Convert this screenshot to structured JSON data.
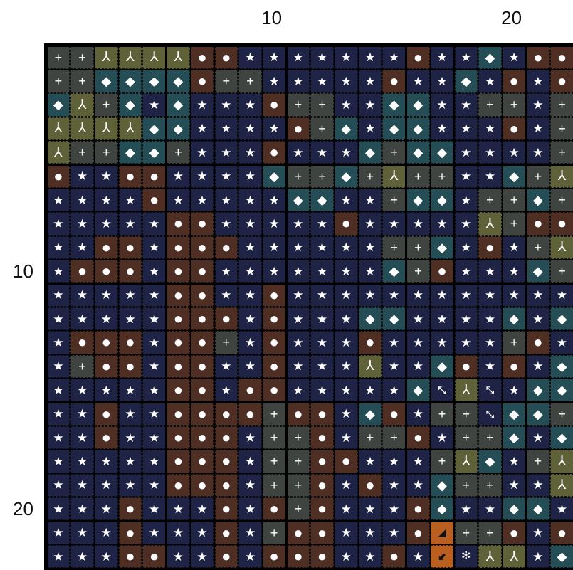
{
  "axes": {
    "top_labels": [
      {
        "text": "10",
        "col": 10
      },
      {
        "text": "20",
        "col": 20
      }
    ],
    "left_labels": [
      {
        "text": "10",
        "row": 10
      },
      {
        "text": "20",
        "row": 20
      }
    ]
  },
  "legend": {
    "S": {
      "name": "star",
      "glyph": "★",
      "bg": "#1f2447"
    },
    "O": {
      "name": "dot",
      "glyph": "●",
      "bg": "#4f2f24"
    },
    "P": {
      "name": "plus",
      "glyph": "+",
      "bg": "#404441"
    },
    "D": {
      "name": "diamond",
      "glyph": "◆",
      "bg": "#244d56"
    },
    "T": {
      "name": "tri",
      "glyph": "⅄",
      "bg": "#5f6138"
    },
    "A": {
      "name": "asterisk",
      "glyph": "✻",
      "bg": "#1f2447"
    },
    "X": {
      "name": "diag",
      "glyph": "⤡",
      "bg": "#1f2447"
    },
    "H": {
      "name": "half",
      "glyph": "◢",
      "bg": "#bb5f20"
    },
    "R": {
      "name": "arrow",
      "glyph": "⬋",
      "bg": "#bb5f20"
    }
  },
  "grid": [
    "PPTTTTOOSSSSSSSOSSDSOOS",
    "PPDDDDOPPSSSSSOSSDSOSOO",
    "DTPDSDSSSOPPSSDDSSPPSPS",
    "TTTTDDSSSSOPDSDDSSSOSPD",
    "TPPDDPSSSOSSSDPDDSSSSPS",
    "OSSOOSSSSDPPDPTPPSSDPTD",
    "SSSSOSSSSSDDSSPDDSPPDPS",
    "SSSSSOOSSSSSOSSSSSTPOOS",
    "SSOOSOOOSSSSSSPPDSOSPTS",
    "SOOOSOOSSSSSSSDPOSSSDPD",
    "SSSSSOOSSOSSSSSSSSSSSSS",
    "SSSSSOOOSOSSSDDSSSSDSDP",
    "SOOOSOOPSOSSSOSSSSSPOSD",
    "SPOOSOOSSOSSSTSSDOSOSDS",
    "SSSSSOOSOOSSSSSDXTXSDDO",
    "SSOSSOOOOPOOSDOSPPXDDPD",
    "SSOSSOOOSPPOSPPOSPPDSDX",
    "SSSSSOOOSPPOOSSSPTDSPTS",
    "SSSSSOOOSPPOSOSSDPPSSTT",
    "SSSOSSSOSOPOSSSODSSDDST",
    "SSSOSSSOSPOOSSSOHPPOSOO",
    "SSSOOSSOSOOOSSOSRATTSDS"
  ]
}
